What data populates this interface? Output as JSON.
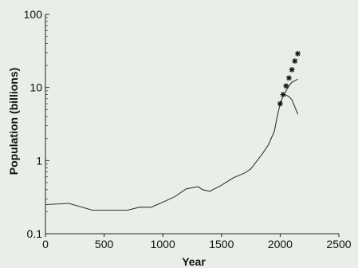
{
  "chart_data": {
    "type": "line",
    "title": "",
    "xlabel": "Year",
    "ylabel": "Population (billions)",
    "xlim": [
      0,
      2500
    ],
    "ylim": [
      0.1,
      100
    ],
    "yscale": "log",
    "grid": false,
    "legend": "none",
    "x_ticks": [
      "0",
      "500",
      "1000",
      "1500",
      "2000",
      "2500"
    ],
    "y_ticks": [
      "0.1",
      "1",
      "10",
      "100"
    ],
    "series": [
      {
        "kind": "line",
        "x": [
          0,
          200,
          400,
          600,
          700,
          800,
          900,
          1000,
          1100,
          1200,
          1300,
          1340,
          1400,
          1500,
          1600,
          1700,
          1750,
          1800,
          1850,
          1900,
          1950,
          1975,
          2000,
          2030,
          2050
        ],
        "y": [
          0.25,
          0.26,
          0.21,
          0.21,
          0.21,
          0.23,
          0.23,
          0.27,
          0.32,
          0.41,
          0.44,
          0.4,
          0.38,
          0.46,
          0.58,
          0.68,
          0.77,
          0.98,
          1.25,
          1.65,
          2.5,
          4.0,
          6.0,
          8.0,
          9.0
        ]
      },
      {
        "kind": "line",
        "x": [
          2050,
          2075,
          2100,
          2130,
          2150
        ],
        "y": [
          9.0,
          10.5,
          11.8,
          12.5,
          13.0
        ]
      },
      {
        "kind": "line",
        "x": [
          2040,
          2070,
          2100,
          2130,
          2150
        ],
        "y": [
          8.0,
          7.6,
          6.8,
          5.2,
          4.3
        ]
      },
      {
        "kind": "markers",
        "marker": "star",
        "x": [
          2000,
          2025,
          2050,
          2075,
          2100,
          2125,
          2150
        ],
        "y": [
          6.0,
          8.0,
          10.5,
          13.5,
          17.5,
          23.0,
          29.0
        ]
      }
    ]
  }
}
